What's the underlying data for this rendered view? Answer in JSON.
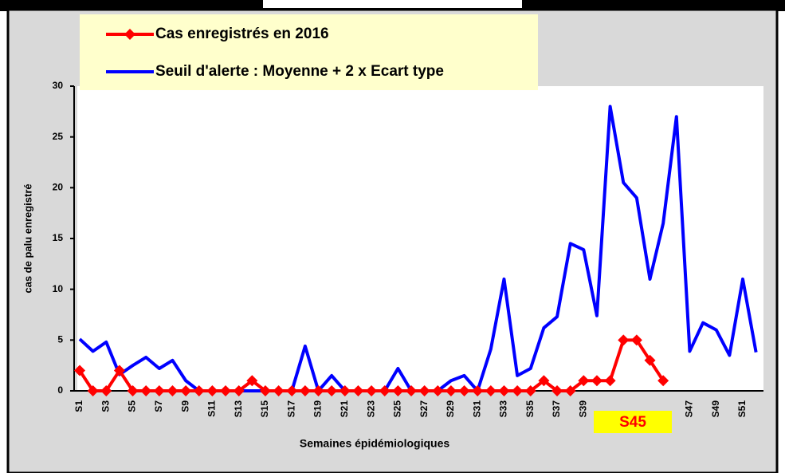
{
  "chart_data": {
    "type": "line",
    "categories": [
      "S1",
      null,
      "S3",
      null,
      "S5",
      null,
      "S7",
      null,
      "S9",
      null,
      "S11",
      null,
      "S13",
      null,
      "S15",
      null,
      "S17",
      null,
      "S19",
      null,
      "S21",
      null,
      "S23",
      null,
      "S25",
      null,
      "S27",
      null,
      "S29",
      null,
      "S31",
      null,
      "S33",
      null,
      "S35",
      null,
      "S37",
      null,
      "S39",
      null,
      null,
      null,
      null,
      null,
      null,
      null,
      "S47",
      null,
      "S49",
      null,
      "S51",
      null
    ],
    "series": [
      {
        "name": "Cas enregistrés en 2016",
        "color": "#ff0000",
        "marker": "diamond",
        "values": [
          2,
          0,
          0,
          2,
          0,
          0,
          0,
          0,
          0,
          0,
          0,
          0,
          0,
          1,
          0,
          0,
          0,
          0,
          0,
          0,
          0,
          0,
          0,
          0,
          0,
          0,
          0,
          0,
          0,
          0,
          0,
          0,
          0,
          0,
          0,
          1,
          0,
          0,
          1,
          1,
          1,
          5,
          5,
          3,
          1,
          null,
          null,
          null,
          null,
          null,
          null,
          null
        ]
      },
      {
        "name": "Seuil d'alerte : Moyenne + 2 x Ecart type",
        "color": "#0000ff",
        "values": [
          5.1,
          3.9,
          4.8,
          1.6,
          2.5,
          3.3,
          2.2,
          3.0,
          1.0,
          0,
          0,
          0,
          0,
          0,
          0,
          0,
          0,
          4.4,
          0,
          1.5,
          0,
          0,
          0,
          0,
          2.2,
          0,
          0,
          0,
          1.0,
          1.5,
          0,
          4.1,
          11,
          1.5,
          2.2,
          6.2,
          7.3,
          14.5,
          13.9,
          7.4,
          28,
          20.5,
          19,
          11,
          16.5,
          27,
          3.9,
          6.7,
          6,
          3.5,
          11,
          3.8
        ]
      }
    ],
    "ylim": [
      0,
      30
    ],
    "yticks": [
      0,
      5,
      10,
      15,
      20,
      25,
      30
    ],
    "y_label": "cas de palu enregistré",
    "x_label": "Semaines épidémiologiques",
    "annotation": "S45"
  }
}
